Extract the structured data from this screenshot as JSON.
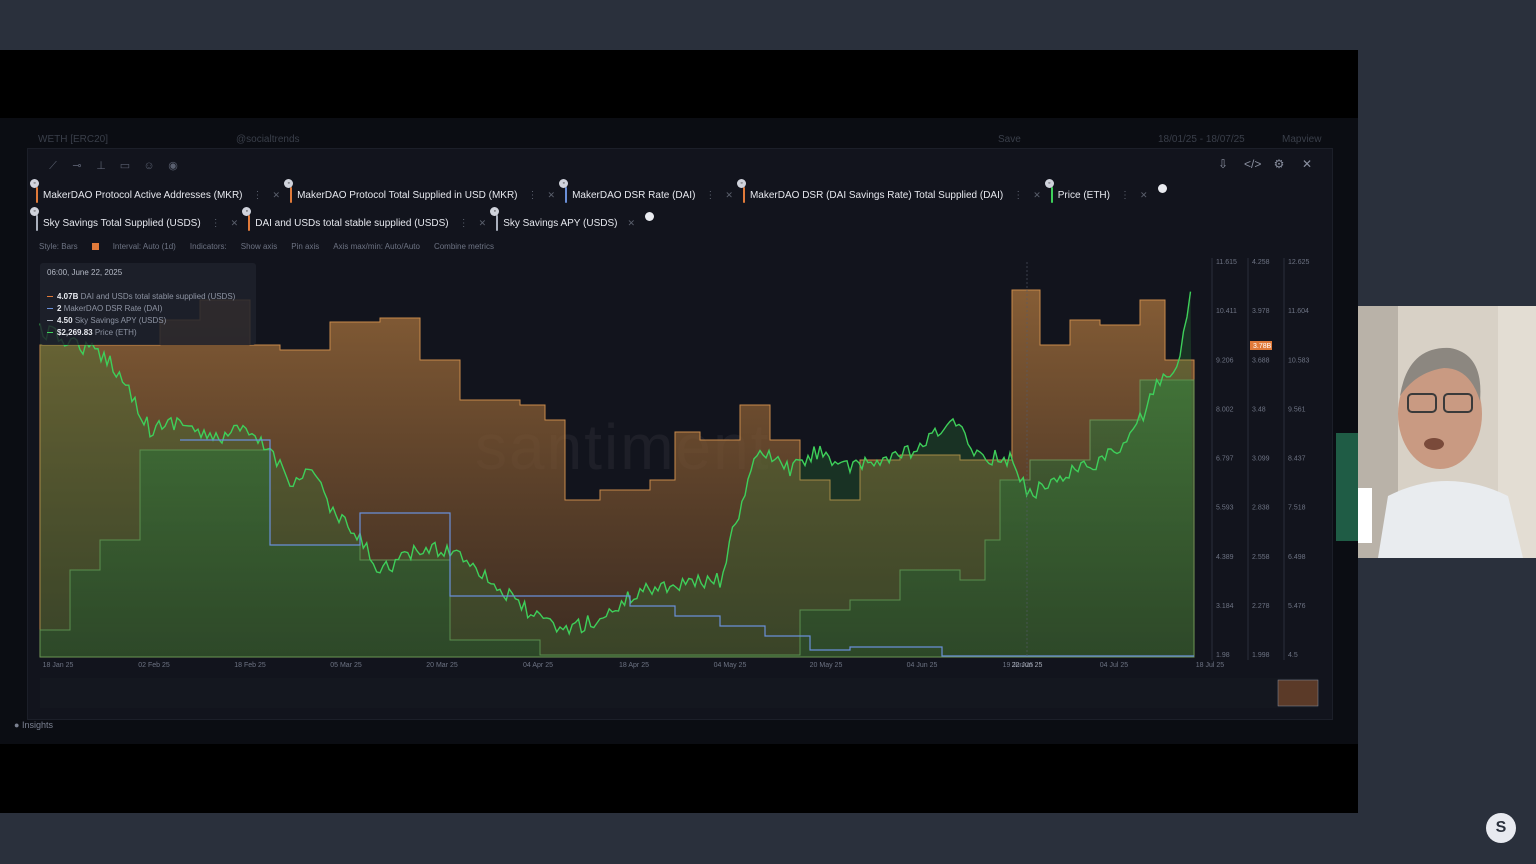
{
  "background_header": {
    "token": "WETH [ERC20]",
    "social": "@socialtrends",
    "save": "Save",
    "date_range": "18/01/25 - 18/07/25",
    "view": "Mapview"
  },
  "metrics_row1": [
    {
      "label": "MakerDAO Protocol Active Addresses (MKR)",
      "color": "#e07a3a"
    },
    {
      "label": "MakerDAO Protocol Total Supplied in USD (MKR)",
      "color": "#e07a3a"
    },
    {
      "label": "MakerDAO DSR Rate (DAI)",
      "color": "#6a8fd8"
    },
    {
      "label": "MakerDAO DSR (DAI Savings Rate) Total Supplied (DAI)",
      "color": "#e07a3a"
    },
    {
      "label": "Price (ETH)",
      "color": "#3ecf5a"
    }
  ],
  "metrics_row2": [
    {
      "label": "Sky Savings Total Supplied (USDS)",
      "color": "#aab0bd"
    },
    {
      "label": "DAI and USDs total stable supplied (USDS)",
      "color": "#e07a3a"
    },
    {
      "label": "Sky Savings APY (USDS)",
      "color": "#aab0bd"
    }
  ],
  "options": {
    "style": "Style: Bars",
    "interval": "Interval: Auto (1d)",
    "indicators": "Indicators:",
    "show_axis": "Show axis",
    "pin_axis": "Pin axis",
    "axis_minmax": "Axis max/min: Auto/Auto",
    "combine": "Combine metrics"
  },
  "tooltip": {
    "date": "06:00, June 22, 2025",
    "rows": [
      {
        "value": "4.07B",
        "label": "DAI and USDs total stable supplied (USDS)",
        "color": "#e07a3a"
      },
      {
        "value": "2",
        "label": "MakerDAO DSR Rate (DAI)",
        "color": "#6a8fd8"
      },
      {
        "value": "4.50",
        "label": "Sky Savings APY (USDS)",
        "color": "#aab0bd"
      },
      {
        "value": "$2,269.83",
        "label": "Price (ETH)",
        "color": "#3ecf5a"
      }
    ]
  },
  "watermark": "santiment",
  "insights": "Insights",
  "logo": "S",
  "chart_data": {
    "type": "area",
    "x_labels": [
      "18 Jan 25",
      "02 Feb 25",
      "18 Feb 25",
      "05 Mar 25",
      "20 Mar 25",
      "04 Apr 25",
      "18 Apr 25",
      "04 May 25",
      "20 May 25",
      "04 Jun 25",
      "19 Jun 25",
      "04 Jul 25",
      "18 Jul 25"
    ],
    "highlight_x": "22 Jun 25",
    "axis1": [
      "11.615",
      "10.411",
      "9.206",
      "8.002",
      "6.797",
      "5.593",
      "4.389",
      "3.184",
      "1.98"
    ],
    "axis1_badge": "3.78B",
    "axis2": [
      "4.258",
      "3.978",
      "3.688",
      "3.48",
      "3.099",
      "2.838",
      "2.558",
      "2.278",
      "1.998"
    ],
    "axis3": [
      "12.625",
      "11.604",
      "10.583",
      "9.561",
      "8.437",
      "7.518",
      "6.498",
      "5.476",
      "4.5"
    ],
    "series": [
      {
        "name": "DAI and USDs total stable supplied (USDS)",
        "color": "#e07a3a"
      },
      {
        "name": "Price (ETH)",
        "color": "#3ecf5a"
      },
      {
        "name": "MakerDAO DSR Rate (DAI)",
        "color": "#6a8fd8"
      }
    ]
  }
}
